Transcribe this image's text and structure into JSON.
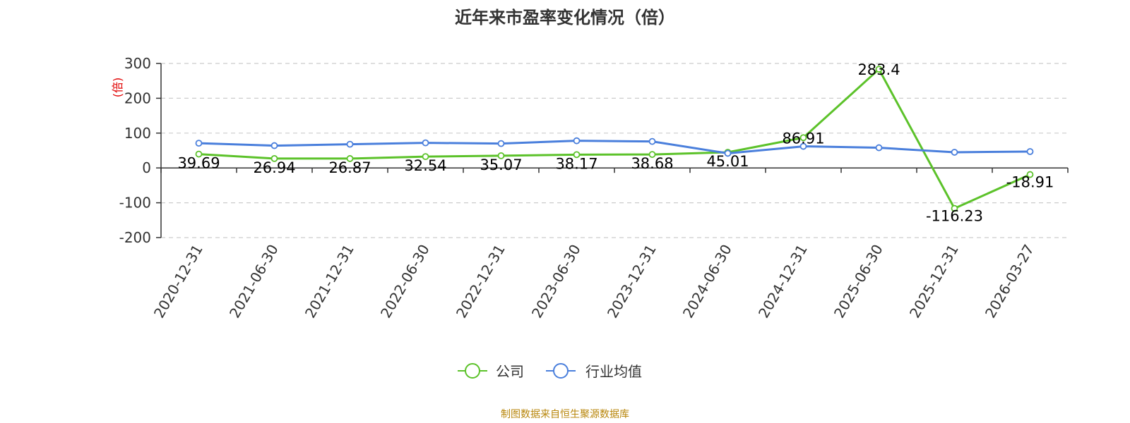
{
  "chart_data": {
    "type": "line",
    "title": "近年来市盈率变化情况（倍）",
    "ylabel": "(倍)",
    "categories": [
      "2020-12-31",
      "2021-06-30",
      "2021-12-31",
      "2022-06-30",
      "2022-12-31",
      "2023-06-30",
      "2023-12-31",
      "2024-06-30",
      "2024-12-31",
      "2025-06-30",
      "2025-12-31",
      "2026-03-27"
    ],
    "yticks": [
      300,
      200,
      100,
      0,
      -100,
      -200
    ],
    "ylim": [
      -200,
      300
    ],
    "grid": true,
    "legend_position": "bottom",
    "series": [
      {
        "name": "公司",
        "color": "#5cc22a",
        "values": [
          39.69,
          26.94,
          26.87,
          32.54,
          35.07,
          38.17,
          38.68,
          45.01,
          86.91,
          283.4,
          -116.23,
          -18.91
        ],
        "labels": [
          "39.69",
          "26.94",
          "26.87",
          "32.54",
          "35.07",
          "38.17",
          "38.68",
          "45.01",
          "86.91",
          "283.4",
          "-116.23",
          "-18.91"
        ]
      },
      {
        "name": "行业均值",
        "color": "#4a7fdc",
        "values": [
          71,
          64,
          68,
          72,
          70,
          78,
          76,
          42,
          62,
          58,
          45,
          47
        ]
      }
    ],
    "source": "制图数据来自恒生聚源数据库"
  }
}
